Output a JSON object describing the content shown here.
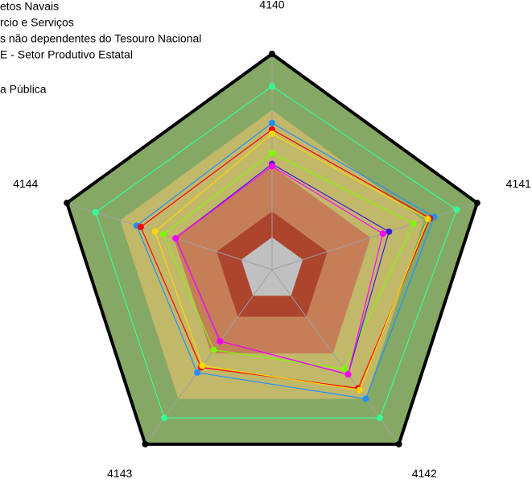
{
  "chart_data": {
    "type": "radar",
    "categories": [
      "4140",
      "4141",
      "4142",
      "4143",
      "4144"
    ],
    "rlim": [
      0,
      100
    ],
    "bands": [
      {
        "to": 100,
        "color": "#86a865"
      },
      {
        "to": 74,
        "color": "#c2b86a"
      },
      {
        "to": 48,
        "color": "#c47f59"
      },
      {
        "to": 27,
        "color": "#ad442e"
      },
      {
        "to": 15,
        "color": "#c0c0c0"
      }
    ],
    "series": [
      {
        "name": "etos Navais",
        "color": "#33ff99",
        "values": [
          85,
          90,
          85,
          85,
          86
        ]
      },
      {
        "name": "rcio e Serviços",
        "color": "#1e90ff",
        "values": [
          68,
          79,
          74,
          59,
          66
        ]
      },
      {
        "name": "s não dependentes do Tesouro Nacional",
        "color": "#ff0000",
        "values": [
          65,
          77,
          68,
          56,
          64
        ]
      },
      {
        "name": "E - Setor Produtivo Estatal",
        "color": "#ffd700",
        "values": [
          63,
          76,
          69,
          55,
          57
        ]
      },
      {
        "name": "a Pública",
        "color": "#7cfc00",
        "values": [
          54,
          69,
          57,
          46,
          53
        ]
      },
      {
        "color": "#3c1fd6",
        "values": [
          49,
          57,
          60,
          41,
          47
        ]
      },
      {
        "color": "#ff00ff",
        "values": [
          48,
          54,
          60,
          41,
          47
        ]
      }
    ]
  }
}
